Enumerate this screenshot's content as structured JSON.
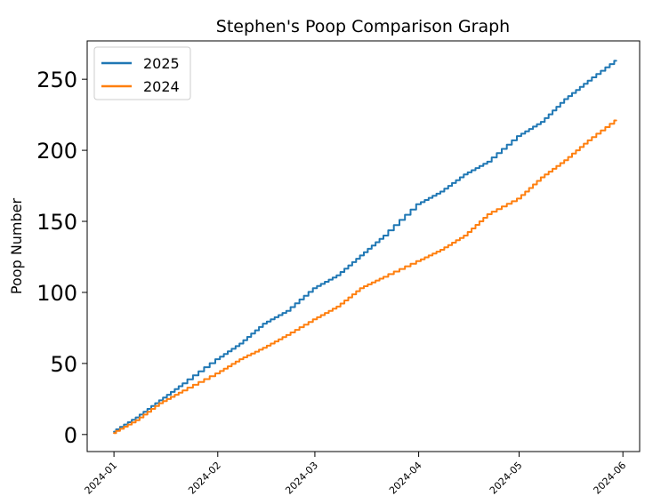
{
  "chart_data": {
    "type": "line",
    "title": "Stephen's Poop Comparison Graph",
    "xlabel": "",
    "ylabel": "Poop Number",
    "x_axis": {
      "type": "date",
      "range": [
        "2023-12-24",
        "2024-06-06"
      ],
      "ticks": [
        "2024-01-01",
        "2024-02-01",
        "2024-03-01",
        "2024-04-01",
        "2024-05-01",
        "2024-06-01"
      ],
      "tick_labels": [
        "2024-01",
        "2024-02",
        "2024-03",
        "2024-04",
        "2024-05",
        "2024-06"
      ]
    },
    "y_axis": {
      "range": [
        -12,
        277
      ],
      "ticks": [
        0,
        50,
        100,
        150,
        200,
        250
      ],
      "tick_labels": [
        "0",
        "50",
        "100",
        "150",
        "200",
        "250"
      ]
    },
    "grid": false,
    "legend": {
      "placement": "top-left"
    },
    "series": [
      {
        "name": "2025",
        "color": "#1f77b4",
        "points": [
          [
            "2024-01-01",
            2
          ],
          [
            "2024-01-08",
            12
          ],
          [
            "2024-01-15",
            24
          ],
          [
            "2024-01-22",
            36
          ],
          [
            "2024-02-01",
            53
          ],
          [
            "2024-02-08",
            64
          ],
          [
            "2024-02-15",
            78
          ],
          [
            "2024-02-22",
            87
          ],
          [
            "2024-03-01",
            103
          ],
          [
            "2024-03-08",
            112
          ],
          [
            "2024-03-15",
            126
          ],
          [
            "2024-03-22",
            140
          ],
          [
            "2024-04-01",
            162
          ],
          [
            "2024-04-08",
            171
          ],
          [
            "2024-04-15",
            183
          ],
          [
            "2024-04-22",
            192
          ],
          [
            "2024-05-01",
            210
          ],
          [
            "2024-05-08",
            220
          ],
          [
            "2024-05-15",
            236
          ],
          [
            "2024-05-22",
            249
          ],
          [
            "2024-05-30",
            263
          ]
        ]
      },
      {
        "name": "2024",
        "color": "#ff7f0e",
        "points": [
          [
            "2024-01-01",
            1
          ],
          [
            "2024-01-08",
            10
          ],
          [
            "2024-01-15",
            22
          ],
          [
            "2024-01-22",
            31
          ],
          [
            "2024-02-01",
            43
          ],
          [
            "2024-02-08",
            53
          ],
          [
            "2024-02-15",
            61
          ],
          [
            "2024-02-22",
            70
          ],
          [
            "2024-03-01",
            81
          ],
          [
            "2024-03-08",
            90
          ],
          [
            "2024-03-15",
            103
          ],
          [
            "2024-03-22",
            111
          ],
          [
            "2024-04-01",
            122
          ],
          [
            "2024-04-08",
            130
          ],
          [
            "2024-04-15",
            140
          ],
          [
            "2024-04-22",
            155
          ],
          [
            "2024-05-01",
            166
          ],
          [
            "2024-05-08",
            181
          ],
          [
            "2024-05-15",
            193
          ],
          [
            "2024-05-22",
            207
          ],
          [
            "2024-05-30",
            221
          ]
        ]
      }
    ]
  }
}
